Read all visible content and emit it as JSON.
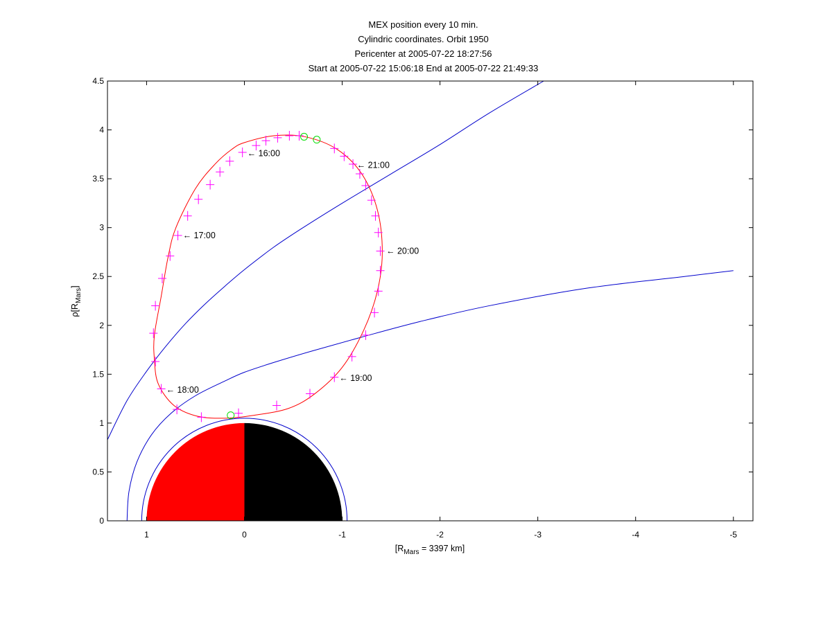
{
  "chart_data": {
    "type": "line",
    "title_lines": [
      "MEX position every 10 min.",
      "Cylindric coordinates. Orbit 1950",
      "Pericenter at 2005-07-22 18:27:56",
      "Start at 2005-07-22 15:06:18 End at 2005-07-22 21:49:33"
    ],
    "xlabel": {
      "main": "[R",
      "sub": "Mars",
      "rest": " = 3397 km]"
    },
    "ylabel": {
      "main": "ρ[R",
      "sub": "Mars",
      "rest": "]"
    },
    "xlim": [
      1.4,
      -5.2
    ],
    "ylim": [
      0,
      4.5
    ],
    "x_ticks": [
      1,
      0,
      -1,
      -2,
      -3,
      -4,
      -5
    ],
    "x_tick_labels": [
      "1",
      "0",
      "-1",
      "-2",
      "-3",
      "-4",
      "-5"
    ],
    "y_ticks": [
      0,
      0.5,
      1,
      1.5,
      2,
      2.5,
      3,
      3.5,
      4,
      4.5
    ],
    "y_tick_labels": [
      "0",
      "0.5",
      "1",
      "1.5",
      "2",
      "2.5",
      "3",
      "3.5",
      "4",
      "4.5"
    ],
    "colors": {
      "orbit": "#ff0000",
      "markers": "#ff00ff",
      "boundaries": "#0000cc",
      "special_points": "#00dd00",
      "mars_day": "#ff0000",
      "mars_night": "#000000"
    },
    "orbit": {
      "x": [
        0.13,
        0.0,
        -0.3,
        -0.62,
        -0.95,
        -1.2,
        -1.36,
        -1.41,
        -1.36,
        -1.22,
        -1.0,
        -0.72,
        -0.45,
        -0.1,
        0.2,
        0.48,
        0.72,
        0.88,
        0.92,
        0.92,
        0.85,
        0.78,
        0.7,
        0.5,
        0.3,
        0.13
      ],
      "y": [
        3.8,
        3.87,
        3.94,
        3.93,
        3.8,
        3.55,
        3.18,
        2.75,
        2.35,
        1.95,
        1.57,
        1.3,
        1.15,
        1.08,
        1.05,
        1.07,
        1.18,
        1.4,
        1.65,
        1.9,
        2.3,
        2.7,
        3.0,
        3.4,
        3.65,
        3.8
      ]
    },
    "markers": [
      {
        "x": 0.15,
        "y": 3.68
      },
      {
        "x": 0.02,
        "y": 3.77
      },
      {
        "x": -0.12,
        "y": 3.84
      },
      {
        "x": -0.22,
        "y": 3.89
      },
      {
        "x": -0.34,
        "y": 3.92
      },
      {
        "x": -0.46,
        "y": 3.94
      },
      {
        "x": -0.56,
        "y": 3.94
      },
      {
        "x": -0.92,
        "y": 3.81
      },
      {
        "x": -1.02,
        "y": 3.73
      },
      {
        "x": -1.11,
        "y": 3.65
      },
      {
        "x": -1.18,
        "y": 3.55
      },
      {
        "x": -1.24,
        "y": 3.43
      },
      {
        "x": -1.3,
        "y": 3.28
      },
      {
        "x": -1.34,
        "y": 3.12
      },
      {
        "x": -1.37,
        "y": 2.95
      },
      {
        "x": -1.39,
        "y": 2.76
      },
      {
        "x": -1.39,
        "y": 2.56
      },
      {
        "x": -1.37,
        "y": 2.35
      },
      {
        "x": -1.33,
        "y": 2.13
      },
      {
        "x": -1.24,
        "y": 1.9
      },
      {
        "x": -1.1,
        "y": 1.68
      },
      {
        "x": -0.92,
        "y": 1.47
      },
      {
        "x": -0.67,
        "y": 1.3
      },
      {
        "x": -0.33,
        "y": 1.18
      },
      {
        "x": 0.06,
        "y": 1.1
      },
      {
        "x": 0.44,
        "y": 1.06
      },
      {
        "x": 0.69,
        "y": 1.14
      },
      {
        "x": 0.85,
        "y": 1.35
      },
      {
        "x": 0.91,
        "y": 1.63
      },
      {
        "x": 0.93,
        "y": 1.92
      },
      {
        "x": 0.91,
        "y": 2.2
      },
      {
        "x": 0.84,
        "y": 2.48
      },
      {
        "x": 0.76,
        "y": 2.71
      },
      {
        "x": 0.68,
        "y": 2.92
      },
      {
        "x": 0.58,
        "y": 3.12
      },
      {
        "x": 0.47,
        "y": 3.29
      },
      {
        "x": 0.35,
        "y": 3.44
      },
      {
        "x": 0.25,
        "y": 3.57
      }
    ],
    "special_points": [
      {
        "x": -0.61,
        "y": 3.93
      },
      {
        "x": -0.74,
        "y": 3.9
      },
      {
        "x": 0.14,
        "y": 1.08
      }
    ],
    "annotations": [
      {
        "x": 0.02,
        "y": 3.76,
        "label": "← 16:00"
      },
      {
        "x": -1.1,
        "y": 3.64,
        "label": "← 21:00"
      },
      {
        "x": 0.68,
        "y": 2.92,
        "label": "← 17:00"
      },
      {
        "x": -1.4,
        "y": 2.76,
        "label": "← 20:00"
      },
      {
        "x": -0.92,
        "y": 1.46,
        "label": "← 19:00"
      },
      {
        "x": 0.85,
        "y": 1.34,
        "label": "← 18:00"
      }
    ],
    "bow_shock": {
      "x": [
        1.4,
        1.2,
        1.0,
        0.8,
        0.6,
        0.4,
        0.2,
        0.0,
        -0.3,
        -0.6,
        -1.0,
        -1.5,
        -2.0,
        -2.5,
        -3.06
      ],
      "y": [
        0.83,
        1.23,
        1.53,
        1.79,
        2.02,
        2.22,
        2.4,
        2.57,
        2.8,
        3.0,
        3.25,
        3.55,
        3.85,
        4.17,
        4.5
      ]
    },
    "mpb": {
      "x": [
        1.2,
        1.18,
        1.1,
        0.95,
        0.75,
        0.5,
        0.2,
        0.0,
        -0.3,
        -0.7,
        -1.2,
        -1.8,
        -2.5,
        -3.5,
        -4.5,
        -5.0
      ],
      "y": [
        0.0,
        0.3,
        0.6,
        0.88,
        1.1,
        1.28,
        1.43,
        1.52,
        1.62,
        1.74,
        1.88,
        2.04,
        2.2,
        2.38,
        2.5,
        2.56
      ]
    },
    "mars_radius": 1.0,
    "inner_ring_radius": 1.05
  }
}
